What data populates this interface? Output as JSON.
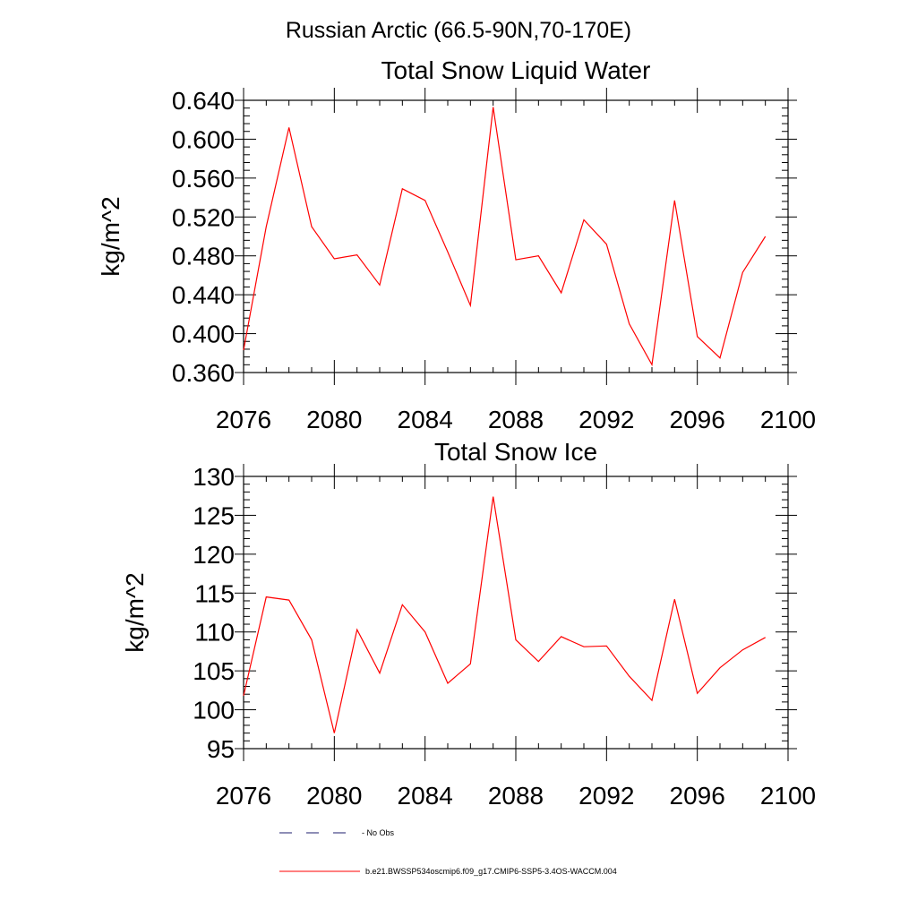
{
  "figure": {
    "title": "Russian Arctic (66.5-90N,70-170E)"
  },
  "chart_data": [
    {
      "type": "line",
      "title": "Total Snow Liquid Water",
      "xlabel": "",
      "ylabel": "kg/m^2",
      "xlim": [
        2076,
        2100
      ],
      "ylim": [
        0.36,
        0.64
      ],
      "x_ticks": [
        "2076",
        "2080",
        "2084",
        "2088",
        "2092",
        "2096",
        "2100"
      ],
      "y_ticks": [
        "0.360",
        "0.400",
        "0.440",
        "0.480",
        "0.520",
        "0.560",
        "0.600",
        "0.640"
      ],
      "x": [
        2076,
        2077,
        2078,
        2079,
        2080,
        2081,
        2082,
        2083,
        2084,
        2085,
        2086,
        2087,
        2088,
        2089,
        2090,
        2091,
        2092,
        2093,
        2094,
        2095,
        2096,
        2097,
        2098,
        2099
      ],
      "series": [
        {
          "name": "b.e21.BWSSP534oscmip6.f09_g17.CMIP6-SSP5-3.4OS-WACCM.004",
          "color": "#ff0000",
          "values": [
            0.383,
            0.51,
            0.612,
            0.51,
            0.477,
            0.481,
            0.45,
            0.549,
            0.537,
            0.484,
            0.429,
            0.633,
            0.476,
            0.48,
            0.442,
            0.517,
            0.492,
            0.41,
            0.368,
            0.537,
            0.397,
            0.375,
            0.463,
            0.5
          ]
        }
      ]
    },
    {
      "type": "line",
      "title": "Total Snow Ice",
      "xlabel": "",
      "ylabel": "kg/m^2",
      "xlim": [
        2076,
        2100
      ],
      "ylim": [
        95,
        130
      ],
      "x_ticks": [
        "2076",
        "2080",
        "2084",
        "2088",
        "2092",
        "2096",
        "2100"
      ],
      "y_ticks": [
        "95",
        "100",
        "105",
        "110",
        "115",
        "120",
        "125",
        "130"
      ],
      "x": [
        2076,
        2077,
        2078,
        2079,
        2080,
        2081,
        2082,
        2083,
        2084,
        2085,
        2086,
        2087,
        2088,
        2089,
        2090,
        2091,
        2092,
        2093,
        2094,
        2095,
        2096,
        2097,
        2098,
        2099
      ],
      "series": [
        {
          "name": "b.e21.BWSSP534oscmip6.f09_g17.CMIP6-SSP5-3.4OS-WACCM.004",
          "color": "#ff0000",
          "values": [
            101.8,
            114.5,
            114.1,
            109.0,
            97.0,
            110.3,
            104.7,
            113.5,
            110.0,
            103.4,
            105.9,
            127.4,
            109.0,
            106.2,
            109.4,
            108.1,
            108.2,
            104.3,
            101.2,
            114.2,
            102.1,
            105.4,
            107.7,
            109.3
          ]
        }
      ]
    }
  ],
  "legend": {
    "items": [
      {
        "label": "No Obs",
        "color": "#1c1c6e",
        "dash": true
      },
      {
        "label": "b.e21.BWSSP534oscmip6.f09_g17.CMIP6-SSP5-3.4OS-WACCM.004",
        "color": "#ff0000",
        "dash": false
      }
    ]
  }
}
